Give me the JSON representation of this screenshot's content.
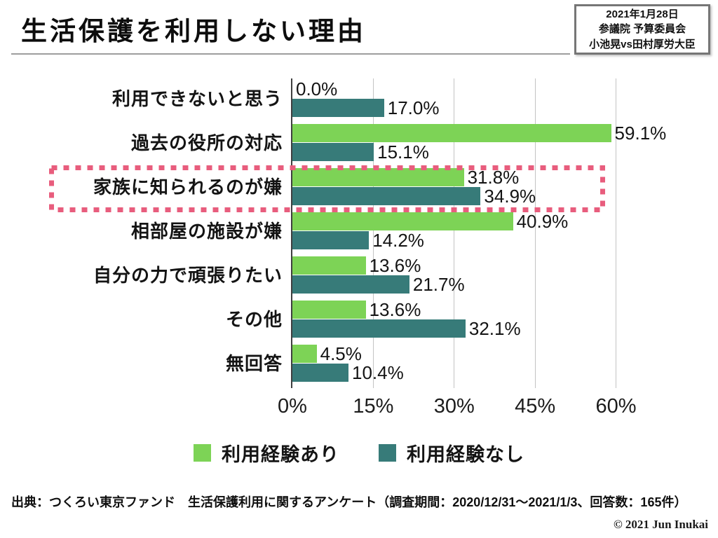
{
  "title": "生活保護を利用しない理由",
  "info_box": {
    "lines": [
      "2021年1月28日",
      "参議院 予算委員会",
      "小池晃vs田村厚労大臣"
    ]
  },
  "chart_data": {
    "type": "bar",
    "orientation": "horizontal",
    "title": "生活保護を利用しない理由",
    "categories": [
      "利用できないと思う",
      "過去の役所の対応",
      "家族に知られるのが嫌",
      "相部屋の施設が嫌",
      "自分の力で頑張りたい",
      "その他",
      "無回答"
    ],
    "series": [
      {
        "name": "利用経験あり",
        "color": "#7dd356",
        "values": [
          0.0,
          59.1,
          31.8,
          40.9,
          13.6,
          13.6,
          4.5
        ]
      },
      {
        "name": "利用経験なし",
        "color": "#377b79",
        "values": [
          17.0,
          15.1,
          34.9,
          14.2,
          21.7,
          32.1,
          10.4
        ]
      }
    ],
    "value_suffix": "%",
    "xlim": [
      0,
      68
    ],
    "xticks": [
      {
        "value": 0,
        "label": "0%"
      },
      {
        "value": 15,
        "label": "15%"
      },
      {
        "value": 30,
        "label": "30%"
      },
      {
        "value": 45,
        "label": "45%"
      },
      {
        "value": 60,
        "label": "60%"
      }
    ],
    "grid": "vertical",
    "legend_position": "bottom",
    "highlight": {
      "category_index": 2,
      "category": "家族に知られるのが嫌",
      "color": "#e85d7d",
      "style": "dashed-box"
    }
  },
  "source": "出典：つくろい東京ファンド　生活保護利用に関するアンケート（調査期間：2020/12/31～2021/1/3、回答数：165件）",
  "copyright": "© 2021 Jun Inukai",
  "colors": {
    "series_yes": "#7dd356",
    "series_no": "#377b79",
    "highlight": "#e85d7d",
    "gridline": "#c3c3c3",
    "axis": "#3f3f3f",
    "title_rule": "#9d9d9d",
    "info_box_border": "#767676"
  }
}
